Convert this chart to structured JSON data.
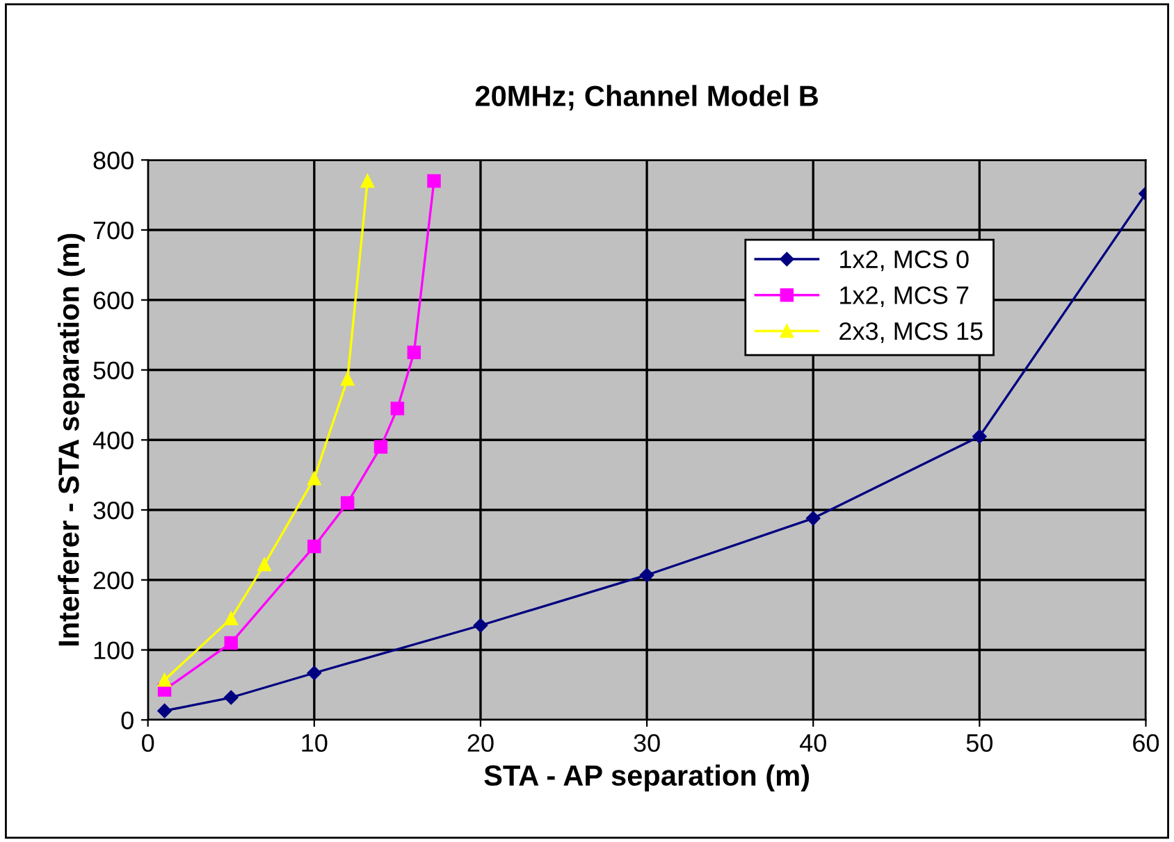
{
  "chart_data": {
    "type": "line",
    "title": "20MHz; Channel Model B",
    "xlabel": "STA - AP separation (m)",
    "ylabel": "Interferer - STA separation (m)",
    "series": [
      {
        "name": "1x2, MCS 0",
        "color": "#000080",
        "marker": "diamond",
        "x": [
          1,
          5,
          10,
          20,
          30,
          40,
          50,
          60
        ],
        "values": [
          13,
          32,
          67,
          135,
          207,
          288,
          405,
          752
        ]
      },
      {
        "name": "1x2, MCS 7",
        "color": "#ff00ff",
        "marker": "square",
        "x": [
          1,
          5,
          10,
          12,
          14,
          15,
          16,
          17.2
        ],
        "values": [
          43,
          110,
          248,
          310,
          390,
          445,
          525,
          770
        ]
      },
      {
        "name": "2x3, MCS 15",
        "color": "#ffff00",
        "marker": "triangle",
        "x": [
          1,
          5,
          7,
          10,
          12,
          13.2
        ],
        "values": [
          57,
          145,
          222,
          345,
          487,
          770
        ]
      }
    ],
    "xlim": [
      0,
      60
    ],
    "xticks": [
      0,
      10,
      20,
      30,
      40,
      50,
      60
    ],
    "ylim": [
      0,
      800
    ],
    "yticks": [
      0,
      100,
      200,
      300,
      400,
      500,
      600,
      700,
      800
    ],
    "grid": true,
    "legend": "top right"
  }
}
